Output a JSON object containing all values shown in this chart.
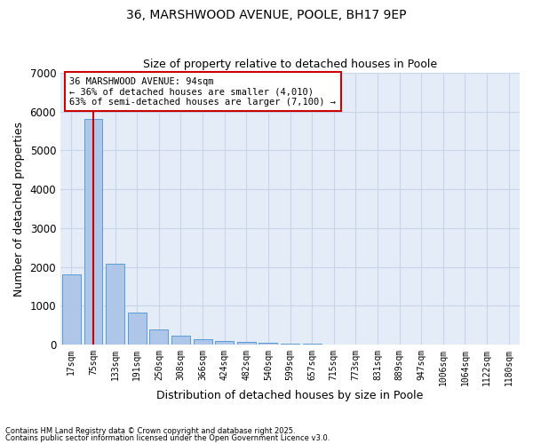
{
  "title_line1": "36, MARSHWOOD AVENUE, POOLE, BH17 9EP",
  "title_line2": "Size of property relative to detached houses in Poole",
  "xlabel": "Distribution of detached houses by size in Poole",
  "ylabel": "Number of detached properties",
  "categories": [
    "17sqm",
    "75sqm",
    "133sqm",
    "191sqm",
    "250sqm",
    "308sqm",
    "366sqm",
    "424sqm",
    "482sqm",
    "540sqm",
    "599sqm",
    "657sqm",
    "715sqm",
    "773sqm",
    "831sqm",
    "889sqm",
    "947sqm",
    "1006sqm",
    "1064sqm",
    "1122sqm",
    "1180sqm"
  ],
  "values": [
    1800,
    5800,
    2080,
    830,
    380,
    230,
    125,
    80,
    75,
    50,
    30,
    20,
    10,
    5,
    5,
    0,
    0,
    0,
    0,
    0,
    0
  ],
  "bar_color": "#aec6e8",
  "bar_edge_color": "#5b9bd5",
  "grid_color": "#c8d4e8",
  "background_color": "#e4ecf8",
  "vline_color": "#cc0000",
  "annotation_text": "36 MARSHWOOD AVENUE: 94sqm\n← 36% of detached houses are smaller (4,010)\n63% of semi-detached houses are larger (7,100) →",
  "annotation_box_color": "#ffffff",
  "annotation_box_edge": "#cc0000",
  "ylim": [
    0,
    7000
  ],
  "yticks": [
    0,
    1000,
    2000,
    3000,
    4000,
    5000,
    6000,
    7000
  ],
  "footnote1": "Contains HM Land Registry data © Crown copyright and database right 2025.",
  "footnote2": "Contains public sector information licensed under the Open Government Licence v3.0."
}
